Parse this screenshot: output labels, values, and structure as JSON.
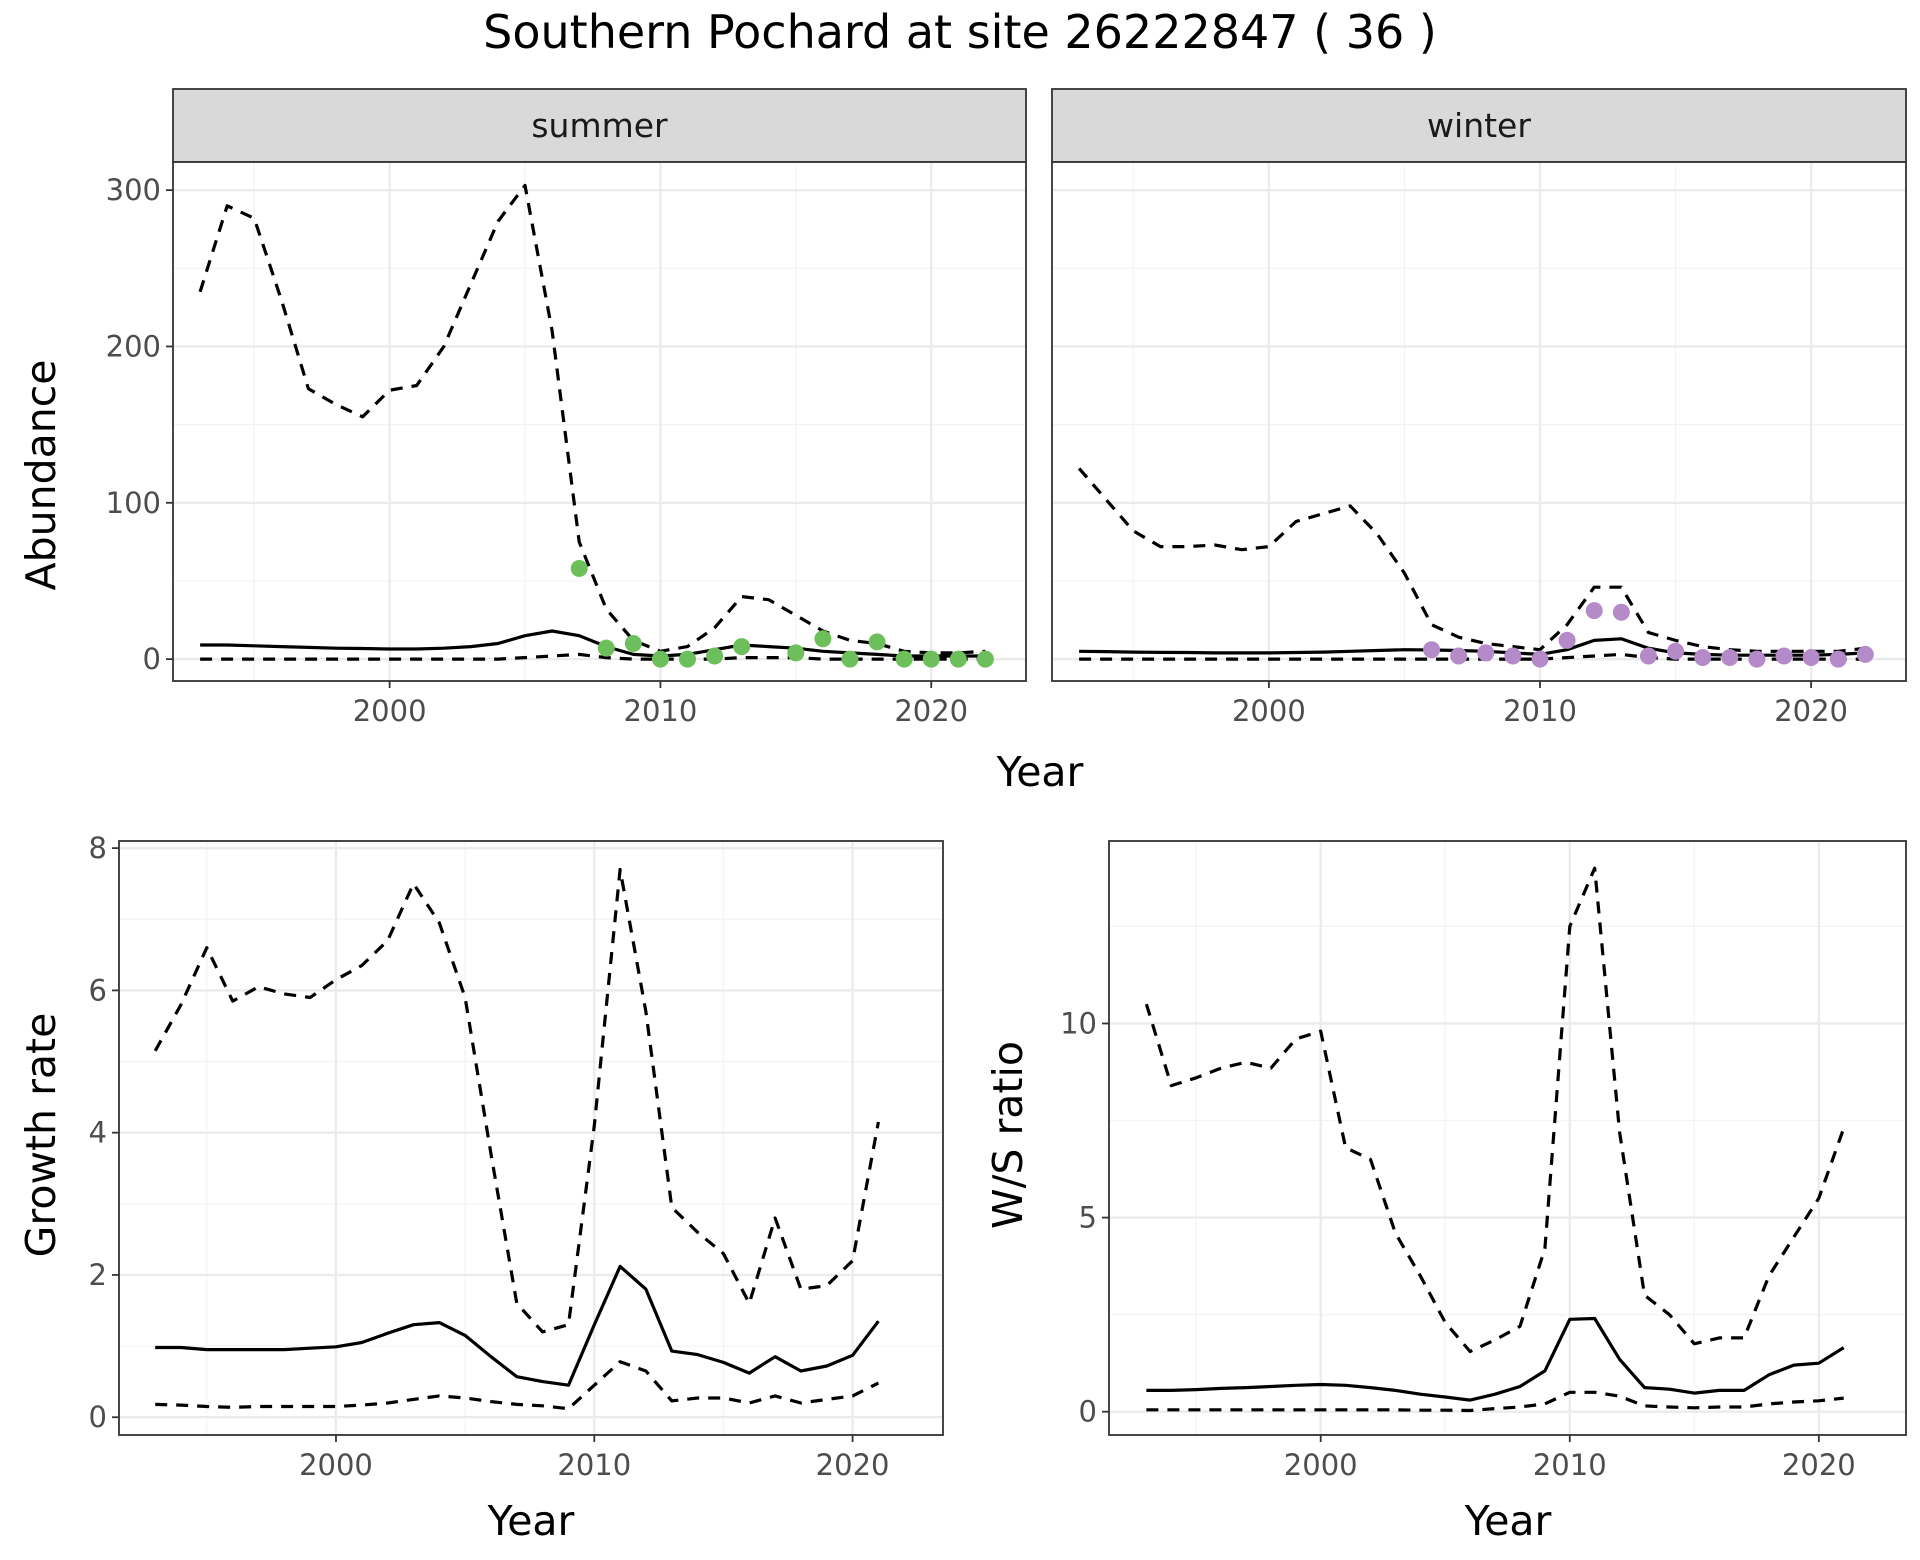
{
  "title": "Southern Pochard at site 26222847 ( 36 )",
  "colors": {
    "summer_points": "#6dbf5b",
    "winter_points": "#b48ac8",
    "lines": "#000000",
    "strip": "#d9d9d9"
  },
  "chart_data": [
    {
      "id": "abundance",
      "type": "line",
      "facets": [
        "summer",
        "winter"
      ],
      "xlabel": "Year",
      "ylabel": "Abundance",
      "xlim": [
        1992,
        2023.5
      ],
      "ylim": [
        -14,
        318
      ],
      "xticks": [
        2000,
        2010,
        2020
      ],
      "yticks": [
        0,
        100,
        200,
        300
      ],
      "panels": [
        {
          "facet": "summer",
          "point_color": "#6dbf5b",
          "x": [
            1993,
            1994,
            1995,
            1996,
            1997,
            1998,
            1999,
            2000,
            2001,
            2002,
            2003,
            2004,
            2005,
            2006,
            2007,
            2008,
            2009,
            2010,
            2011,
            2012,
            2013,
            2014,
            2015,
            2016,
            2017,
            2018,
            2019,
            2020,
            2021,
            2022
          ],
          "mean": [
            9,
            9,
            8.5,
            8,
            7.5,
            7,
            6.8,
            6.5,
            6.5,
            7,
            8,
            10,
            15,
            18,
            15,
            8,
            3,
            2,
            3,
            6,
            9,
            8,
            7,
            5,
            4,
            3,
            2,
            2,
            2,
            2
          ],
          "upper": [
            235,
            290,
            282,
            230,
            173,
            163,
            155,
            172,
            175,
            200,
            240,
            280,
            303,
            210,
            75,
            32,
            12,
            5,
            8,
            20,
            40,
            38,
            28,
            18,
            12,
            10,
            5,
            4,
            4,
            5
          ],
          "lower": [
            0,
            0,
            0,
            0,
            0,
            0,
            0,
            0,
            0,
            0,
            0,
            0,
            1,
            2,
            3,
            1,
            0,
            0,
            0,
            0,
            1,
            1,
            1,
            0,
            0,
            0,
            0,
            0,
            0,
            0
          ],
          "points_x": [
            2007,
            2008,
            2009,
            2010,
            2011,
            2012,
            2013,
            2015,
            2016,
            2017,
            2018,
            2019,
            2020,
            2021,
            2022
          ],
          "points_y": [
            58,
            7,
            10,
            0,
            0,
            2,
            8,
            4,
            13,
            0,
            11,
            0,
            0,
            0,
            0
          ]
        },
        {
          "facet": "winter",
          "point_color": "#b48ac8",
          "x": [
            1993,
            1994,
            1995,
            1996,
            1997,
            1998,
            1999,
            2000,
            2001,
            2002,
            2003,
            2004,
            2005,
            2006,
            2007,
            2008,
            2009,
            2010,
            2011,
            2012,
            2013,
            2014,
            2015,
            2016,
            2017,
            2018,
            2019,
            2020,
            2021,
            2022
          ],
          "mean": [
            5,
            4.8,
            4.5,
            4.3,
            4.2,
            4,
            4,
            4,
            4.2,
            4.5,
            5,
            5.5,
            6,
            5.8,
            5.5,
            5,
            4,
            3,
            6,
            12,
            13,
            7,
            4,
            3,
            2.5,
            2.5,
            2.5,
            2.5,
            3,
            4
          ],
          "upper": [
            122,
            102,
            82,
            72,
            72,
            73,
            70,
            72,
            88,
            93,
            98,
            80,
            55,
            22,
            14,
            10,
            8,
            6,
            22,
            46,
            46,
            17,
            12,
            8,
            6,
            5,
            5,
            5,
            5,
            7
          ],
          "lower": [
            0,
            0,
            0,
            0,
            0,
            0,
            0,
            0,
            0,
            0,
            0,
            0,
            0,
            0,
            0,
            0,
            0,
            0,
            1,
            2,
            3,
            1,
            0,
            0,
            0,
            0,
            0,
            0,
            0,
            0
          ],
          "points_x": [
            2006,
            2007,
            2008,
            2009,
            2010,
            2011,
            2012,
            2013,
            2014,
            2015,
            2016,
            2017,
            2018,
            2019,
            2020,
            2021,
            2022
          ],
          "points_y": [
            6,
            2,
            4,
            2,
            0,
            12,
            31,
            30,
            2,
            5,
            1,
            1,
            0,
            2,
            1,
            0,
            3
          ]
        }
      ]
    },
    {
      "id": "growth",
      "type": "line",
      "xlabel": "Year",
      "ylabel": "Growth rate",
      "xlim": [
        1991.6,
        2023.5
      ],
      "ylim": [
        -0.25,
        8.1
      ],
      "xticks": [
        2000,
        2010,
        2020
      ],
      "yticks": [
        0,
        2,
        4,
        6,
        8
      ],
      "x": [
        1993,
        1994,
        1995,
        1996,
        1997,
        1998,
        1999,
        2000,
        2001,
        2002,
        2003,
        2004,
        2005,
        2006,
        2007,
        2008,
        2009,
        2010,
        2011,
        2012,
        2013,
        2014,
        2015,
        2016,
        2017,
        2018,
        2019,
        2020,
        2021
      ],
      "mean": [
        0.98,
        0.98,
        0.95,
        0.95,
        0.95,
        0.95,
        0.97,
        0.99,
        1.05,
        1.18,
        1.3,
        1.33,
        1.15,
        0.85,
        0.57,
        0.5,
        0.45,
        1.3,
        2.12,
        1.8,
        0.93,
        0.88,
        0.77,
        0.62,
        0.85,
        0.65,
        0.72,
        0.87,
        1.35
      ],
      "upper": [
        5.15,
        5.8,
        6.6,
        5.85,
        6.05,
        5.95,
        5.9,
        6.15,
        6.35,
        6.7,
        7.5,
        6.95,
        5.9,
        3.7,
        1.6,
        1.2,
        1.3,
        4.1,
        7.7,
        5.7,
        2.95,
        2.6,
        2.3,
        1.6,
        2.8,
        1.8,
        1.85,
        2.2,
        4.15
      ],
      "lower": [
        0.18,
        0.17,
        0.15,
        0.14,
        0.15,
        0.15,
        0.15,
        0.15,
        0.17,
        0.2,
        0.25,
        0.3,
        0.27,
        0.22,
        0.18,
        0.16,
        0.12,
        0.45,
        0.78,
        0.65,
        0.23,
        0.27,
        0.27,
        0.2,
        0.3,
        0.2,
        0.25,
        0.3,
        0.48
      ]
    },
    {
      "id": "ws_ratio",
      "type": "line",
      "xlabel": "Year",
      "ylabel": "W/S ratio",
      "xlim": [
        1991.5,
        2023.5
      ],
      "ylim": [
        -0.6,
        14.7
      ],
      "xticks": [
        2000,
        2010,
        2020
      ],
      "yticks": [
        0,
        5,
        10
      ],
      "x": [
        1993,
        1994,
        1995,
        1996,
        1997,
        1998,
        1999,
        2000,
        2001,
        2002,
        2003,
        2004,
        2005,
        2006,
        2007,
        2008,
        2009,
        2010,
        2011,
        2012,
        2013,
        2014,
        2015,
        2016,
        2017,
        2018,
        2019,
        2020,
        2021
      ],
      "mean": [
        0.55,
        0.55,
        0.57,
        0.6,
        0.62,
        0.65,
        0.68,
        0.7,
        0.68,
        0.62,
        0.55,
        0.45,
        0.38,
        0.3,
        0.45,
        0.65,
        1.05,
        2.38,
        2.4,
        1.35,
        0.62,
        0.58,
        0.48,
        0.55,
        0.55,
        0.95,
        1.2,
        1.25,
        1.65
      ],
      "upper": [
        10.5,
        8.4,
        8.6,
        8.85,
        9.0,
        8.85,
        9.6,
        9.8,
        6.8,
        6.5,
        4.6,
        3.5,
        2.3,
        1.55,
        1.85,
        2.2,
        4.2,
        12.5,
        14.0,
        7.2,
        3.0,
        2.5,
        1.75,
        1.9,
        1.9,
        3.5,
        4.5,
        5.5,
        7.3
      ],
      "lower": [
        0.05,
        0.05,
        0.05,
        0.05,
        0.05,
        0.05,
        0.05,
        0.05,
        0.05,
        0.05,
        0.05,
        0.04,
        0.04,
        0.03,
        0.08,
        0.12,
        0.2,
        0.5,
        0.5,
        0.4,
        0.15,
        0.12,
        0.1,
        0.12,
        0.12,
        0.2,
        0.25,
        0.28,
        0.35
      ]
    }
  ]
}
